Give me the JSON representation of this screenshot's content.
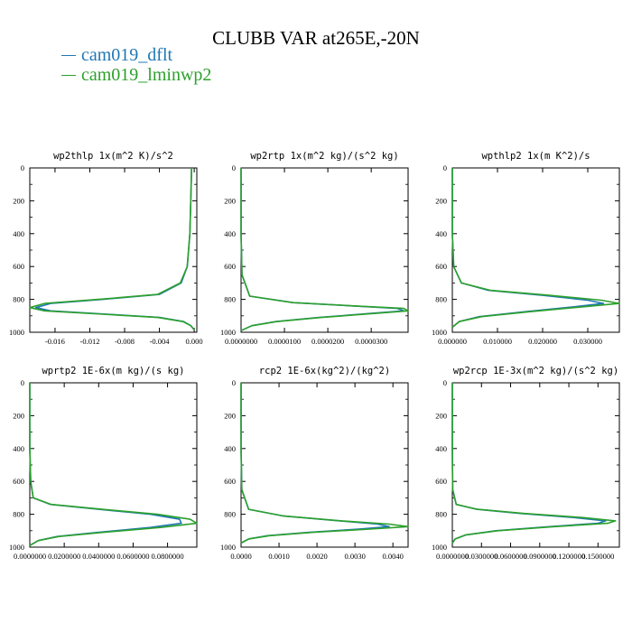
{
  "figure_title": "CLUBB VAR at265E,-20N",
  "legend": [
    {
      "label": "cam019_dflt",
      "color": "#1f77b4"
    },
    {
      "label": "cam019_lminwp2",
      "color": "#2ca02c"
    }
  ],
  "chart_data": [
    {
      "type": "line",
      "title": "wp2thlp   1x(m^2 K)/s^2",
      "x_ticks": [
        "-0.016",
        "-0.012",
        "-0.008",
        "-0.004",
        "0.000"
      ],
      "x_tick_values": [
        -0.016,
        -0.012,
        -0.008,
        -0.004,
        0.0
      ],
      "xlim": [
        -0.0189,
        0.0003
      ],
      "y_ticks": [
        "0",
        "200",
        "400",
        "600",
        "800",
        "1000"
      ],
      "y_tick_values": [
        0,
        200,
        400,
        600,
        800,
        1000
      ],
      "ylim": [
        0,
        1000
      ],
      "series": [
        {
          "name": "cam019_dflt",
          "color": "#1f77b4",
          "x": [
            -0.0003,
            -0.0004,
            -0.0005,
            -0.0008,
            -0.0015,
            -0.004,
            -0.0105,
            -0.0165,
            -0.0182,
            -0.0165,
            -0.01,
            -0.004,
            -0.0012,
            -0.0004,
            0.0
          ],
          "y": [
            0,
            200,
            400,
            600,
            700,
            770,
            800,
            825,
            850,
            870,
            890,
            910,
            935,
            960,
            985
          ]
        },
        {
          "name": "cam019_lminwp2",
          "color": "#2ca02c",
          "x": [
            -0.0003,
            -0.0004,
            -0.0005,
            -0.0008,
            -0.0016,
            -0.0042,
            -0.011,
            -0.0172,
            -0.0189,
            -0.0172,
            -0.0105,
            -0.0042,
            -0.0013,
            -0.0004,
            0.0
          ],
          "y": [
            0,
            200,
            400,
            600,
            700,
            770,
            800,
            825,
            850,
            870,
            890,
            910,
            935,
            960,
            985
          ]
        }
      ]
    },
    {
      "type": "line",
      "title": "wp2rtp   1x(m^2 kg)/(s^2 kg)",
      "x_ticks": [
        "0.0000000",
        "0.0000100",
        "0.0000200",
        "0.0000300"
      ],
      "x_tick_values": [
        0.0,
        1e-05,
        2e-05,
        3e-05
      ],
      "xlim": [
        0.0,
        3.85e-05
      ],
      "y_ticks": [
        "0",
        "200",
        "400",
        "600",
        "800",
        "1000"
      ],
      "y_tick_values": [
        0,
        200,
        400,
        600,
        800,
        1000
      ],
      "ylim": [
        0,
        1000
      ],
      "series": [
        {
          "name": "cam019_dflt",
          "color": "#1f77b4",
          "x": [
            0.0,
            0.0,
            0.0,
            2e-07,
            2e-06,
            1.2e-05,
            2.6e-05,
            3.6e-05,
            3.75e-05,
            3e-05,
            1.8e-05,
            8e-06,
            2.5e-06,
            0.0
          ],
          "y": [
            0,
            200,
            400,
            650,
            780,
            820,
            840,
            855,
            870,
            885,
            910,
            935,
            960,
            990
          ]
        },
        {
          "name": "cam019_lminwp2",
          "color": "#2ca02c",
          "x": [
            0.0,
            0.0,
            0.0,
            2e-07,
            2e-06,
            1.2e-05,
            2.65e-05,
            3.75e-05,
            3.85e-05,
            3.1e-05,
            1.85e-05,
            8.2e-06,
            2.5e-06,
            0.0
          ],
          "y": [
            0,
            200,
            400,
            650,
            780,
            820,
            840,
            855,
            870,
            885,
            910,
            935,
            960,
            990
          ]
        }
      ]
    },
    {
      "type": "line",
      "title": "wpthlp2   1x(m K^2)/s",
      "x_ticks": [
        "0.000000",
        "0.010000",
        "0.020000",
        "0.030000"
      ],
      "x_tick_values": [
        0.0,
        0.01,
        0.02,
        0.03
      ],
      "xlim": [
        0.0,
        0.037
      ],
      "y_ticks": [
        "0",
        "200",
        "400",
        "600",
        "800",
        "1000"
      ],
      "y_tick_values": [
        0,
        200,
        400,
        600,
        800,
        1000
      ],
      "ylim": [
        0,
        1000
      ],
      "series": [
        {
          "name": "cam019_dflt",
          "color": "#1f77b4",
          "x": [
            0.0,
            0.0,
            0.0,
            0.0003,
            0.002,
            0.008,
            0.02,
            0.03,
            0.0335,
            0.027,
            0.016,
            0.006,
            0.0015,
            0.0
          ],
          "y": [
            0,
            200,
            400,
            600,
            700,
            745,
            775,
            805,
            825,
            845,
            875,
            905,
            935,
            970
          ]
        },
        {
          "name": "cam019_lminwp2",
          "color": "#2ca02c",
          "x": [
            0.0,
            0.0,
            0.0,
            0.0003,
            0.002,
            0.0085,
            0.0215,
            0.033,
            0.037,
            0.029,
            0.017,
            0.0065,
            0.0015,
            0.0
          ],
          "y": [
            0,
            200,
            400,
            600,
            700,
            745,
            775,
            805,
            825,
            845,
            875,
            905,
            935,
            970
          ]
        }
      ]
    },
    {
      "type": "line",
      "title": "wprtp2   1E-6x(m kg)/(s kg)",
      "x_ticks": [
        "0.0000000",
        "0.0200000",
        "0.0400000",
        "0.0600000",
        "0.0800000"
      ],
      "x_tick_values": [
        0.0,
        0.02,
        0.04,
        0.06,
        0.08
      ],
      "xlim": [
        0.0,
        0.097
      ],
      "y_ticks": [
        "0",
        "200",
        "400",
        "600",
        "800",
        "1000"
      ],
      "y_tick_values": [
        0,
        200,
        400,
        600,
        800,
        1000
      ],
      "ylim": [
        0,
        1000
      ],
      "series": [
        {
          "name": "cam019_dflt",
          "color": "#1f77b4",
          "x": [
            0.0,
            0.0,
            0.0,
            0.0005,
            0.002,
            0.012,
            0.04,
            0.07,
            0.087,
            0.088,
            0.07,
            0.04,
            0.016,
            0.005,
            0.0
          ],
          "y": [
            0,
            200,
            400,
            600,
            700,
            740,
            770,
            800,
            830,
            855,
            880,
            910,
            935,
            960,
            990
          ]
        },
        {
          "name": "cam019_lminwp2",
          "color": "#2ca02c",
          "x": [
            0.0,
            0.0,
            0.0,
            0.0005,
            0.002,
            0.0125,
            0.042,
            0.074,
            0.093,
            0.097,
            0.076,
            0.043,
            0.017,
            0.005,
            0.0
          ],
          "y": [
            0,
            200,
            400,
            600,
            700,
            740,
            770,
            800,
            830,
            855,
            880,
            910,
            935,
            960,
            990
          ]
        }
      ]
    },
    {
      "type": "line",
      "title": "rcp2   1E-6x(kg^2)/(kg^2)",
      "x_ticks": [
        "0.0000",
        "0.0010",
        "0.0020",
        "0.0030",
        "0.0040"
      ],
      "x_tick_values": [
        0.0,
        0.001,
        0.002,
        0.003,
        0.004
      ],
      "xlim": [
        0.0,
        0.0044
      ],
      "y_ticks": [
        "0",
        "200",
        "400",
        "600",
        "800",
        "1000"
      ],
      "y_tick_values": [
        0,
        200,
        400,
        600,
        800,
        1000
      ],
      "ylim": [
        0,
        1000
      ],
      "series": [
        {
          "name": "cam019_dflt",
          "color": "#1f77b4",
          "x": [
            0.0,
            0.0,
            0.0,
            2e-05,
            0.0002,
            0.0011,
            0.0026,
            0.0036,
            0.0039,
            0.0031,
            0.0018,
            0.0007,
            0.0002,
            0.0
          ],
          "y": [
            0,
            200,
            400,
            650,
            770,
            810,
            840,
            860,
            875,
            890,
            910,
            930,
            950,
            975
          ]
        },
        {
          "name": "cam019_lminwp2",
          "color": "#2ca02c",
          "x": [
            0.0,
            0.0,
            0.0,
            2e-05,
            0.0002,
            0.0011,
            0.00265,
            0.0039,
            0.0044,
            0.0034,
            0.0019,
            0.00075,
            0.0002,
            0.0
          ],
          "y": [
            0,
            200,
            400,
            650,
            770,
            810,
            840,
            860,
            875,
            890,
            910,
            930,
            950,
            975
          ]
        }
      ]
    },
    {
      "type": "line",
      "title": "wp2rcp   1E-3x(m^2 kg)/(s^2 kg)",
      "x_ticks": [
        "0.0000000",
        "0.0300000",
        "0.0600000",
        "0.0900000",
        "0.1200000",
        "0.1500000"
      ],
      "x_tick_values": [
        0.0,
        0.03,
        0.06,
        0.09,
        0.12,
        0.15
      ],
      "xlim": [
        0.0,
        0.172
      ],
      "y_ticks": [
        "0",
        "200",
        "400",
        "600",
        "800",
        "1000"
      ],
      "y_tick_values": [
        0,
        200,
        400,
        600,
        800,
        1000
      ],
      "ylim": [
        0,
        1000
      ],
      "series": [
        {
          "name": "cam019_dflt",
          "color": "#1f77b4",
          "x": [
            0.0,
            0.0,
            0.0,
            0.0004,
            0.004,
            0.025,
            0.07,
            0.125,
            0.158,
            0.15,
            0.1,
            0.045,
            0.014,
            0.003,
            0.0
          ],
          "y": [
            0,
            200,
            400,
            650,
            740,
            770,
            795,
            820,
            840,
            855,
            875,
            900,
            925,
            950,
            975
          ]
        },
        {
          "name": "cam019_lminwp2",
          "color": "#2ca02c",
          "x": [
            0.0,
            0.0,
            0.0,
            0.0004,
            0.004,
            0.026,
            0.074,
            0.134,
            0.168,
            0.16,
            0.105,
            0.047,
            0.014,
            0.003,
            0.0
          ],
          "y": [
            0,
            200,
            400,
            650,
            740,
            770,
            795,
            820,
            840,
            855,
            875,
            900,
            925,
            950,
            975
          ]
        }
      ]
    }
  ]
}
